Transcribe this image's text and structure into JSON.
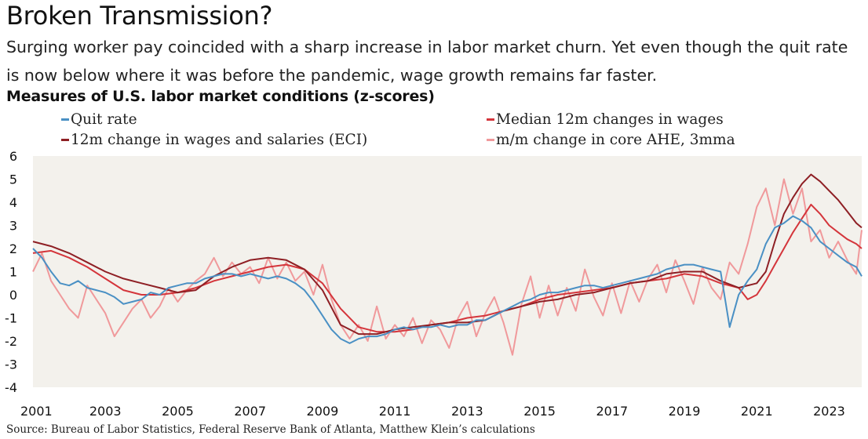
{
  "title": "Broken Transmission?",
  "subtitle": "Surging worker pay coincided with a sharp increase in labor market churn. Yet even though the quit rate is now below where it was before the pandemic, wage growth remains far faster.",
  "source": "Source: Bureau of Labor Statistics, Federal Reserve Bank of Atlanta, Matthew Klein’s calculations",
  "chart_data": {
    "type": "line",
    "title": "Measures of U.S. labor market conditions (z-scores)",
    "xlabel": "",
    "ylabel": "",
    "xlim": [
      2001,
      2023.9
    ],
    "ylim": [
      -4,
      6
    ],
    "x_ticks": [
      "2001",
      "2003",
      "2005",
      "2007",
      "2009",
      "2011",
      "2013",
      "2015",
      "2017",
      "2019",
      "2021",
      "2023"
    ],
    "y_ticks": [
      "6",
      "5",
      "4",
      "3",
      "2",
      "1",
      "0",
      "-1",
      "-2",
      "-3",
      "-4"
    ],
    "grid": false,
    "plot_background": "#f3f1ec",
    "legend_position": "top",
    "series": [
      {
        "name": "Quit rate",
        "color": "#4a90c4",
        "points": [
          [
            2001.0,
            2.0
          ],
          [
            2001.25,
            1.6
          ],
          [
            2001.5,
            1.0
          ],
          [
            2001.75,
            0.5
          ],
          [
            2002.0,
            0.4
          ],
          [
            2002.25,
            0.6
          ],
          [
            2002.5,
            0.3
          ],
          [
            2002.75,
            0.2
          ],
          [
            2003.0,
            0.1
          ],
          [
            2003.25,
            -0.1
          ],
          [
            2003.5,
            -0.4
          ],
          [
            2003.75,
            -0.3
          ],
          [
            2004.0,
            -0.2
          ],
          [
            2004.25,
            0.1
          ],
          [
            2004.5,
            0.0
          ],
          [
            2004.75,
            0.3
          ],
          [
            2005.0,
            0.4
          ],
          [
            2005.25,
            0.5
          ],
          [
            2005.5,
            0.5
          ],
          [
            2005.75,
            0.7
          ],
          [
            2006.0,
            0.8
          ],
          [
            2006.25,
            0.9
          ],
          [
            2006.5,
            0.9
          ],
          [
            2006.75,
            0.8
          ],
          [
            2007.0,
            0.9
          ],
          [
            2007.25,
            0.8
          ],
          [
            2007.5,
            0.7
          ],
          [
            2007.75,
            0.8
          ],
          [
            2008.0,
            0.7
          ],
          [
            2008.25,
            0.5
          ],
          [
            2008.5,
            0.2
          ],
          [
            2008.75,
            -0.3
          ],
          [
            2009.0,
            -0.9
          ],
          [
            2009.25,
            -1.5
          ],
          [
            2009.5,
            -1.9
          ],
          [
            2009.75,
            -2.1
          ],
          [
            2010.0,
            -1.9
          ],
          [
            2010.25,
            -1.8
          ],
          [
            2010.5,
            -1.8
          ],
          [
            2010.75,
            -1.7
          ],
          [
            2011.0,
            -1.5
          ],
          [
            2011.25,
            -1.4
          ],
          [
            2011.5,
            -1.5
          ],
          [
            2011.75,
            -1.4
          ],
          [
            2012.0,
            -1.4
          ],
          [
            2012.25,
            -1.3
          ],
          [
            2012.5,
            -1.4
          ],
          [
            2012.75,
            -1.3
          ],
          [
            2013.0,
            -1.3
          ],
          [
            2013.25,
            -1.1
          ],
          [
            2013.5,
            -1.1
          ],
          [
            2013.75,
            -0.9
          ],
          [
            2014.0,
            -0.7
          ],
          [
            2014.25,
            -0.5
          ],
          [
            2014.5,
            -0.3
          ],
          [
            2014.75,
            -0.2
          ],
          [
            2015.0,
            0.0
          ],
          [
            2015.25,
            0.1
          ],
          [
            2015.5,
            0.1
          ],
          [
            2015.75,
            0.2
          ],
          [
            2016.0,
            0.3
          ],
          [
            2016.25,
            0.4
          ],
          [
            2016.5,
            0.4
          ],
          [
            2016.75,
            0.3
          ],
          [
            2017.0,
            0.4
          ],
          [
            2017.25,
            0.5
          ],
          [
            2017.5,
            0.6
          ],
          [
            2017.75,
            0.7
          ],
          [
            2018.0,
            0.8
          ],
          [
            2018.25,
            0.9
          ],
          [
            2018.5,
            1.1
          ],
          [
            2018.75,
            1.2
          ],
          [
            2019.0,
            1.3
          ],
          [
            2019.25,
            1.3
          ],
          [
            2019.5,
            1.2
          ],
          [
            2019.75,
            1.1
          ],
          [
            2020.0,
            1.0
          ],
          [
            2020.25,
            -1.4
          ],
          [
            2020.5,
            0.0
          ],
          [
            2020.75,
            0.6
          ],
          [
            2021.0,
            1.1
          ],
          [
            2021.25,
            2.2
          ],
          [
            2021.5,
            2.9
          ],
          [
            2021.75,
            3.1
          ],
          [
            2022.0,
            3.4
          ],
          [
            2022.25,
            3.2
          ],
          [
            2022.5,
            2.9
          ],
          [
            2022.75,
            2.3
          ],
          [
            2023.0,
            2.0
          ],
          [
            2023.25,
            1.7
          ],
          [
            2023.5,
            1.4
          ],
          [
            2023.75,
            1.2
          ],
          [
            2023.9,
            0.8
          ]
        ]
      },
      {
        "name": "12m change in wages and salaries (ECI)",
        "color": "#8e1f24",
        "points": [
          [
            2001.0,
            2.3
          ],
          [
            2001.5,
            2.1
          ],
          [
            2002.0,
            1.8
          ],
          [
            2002.5,
            1.4
          ],
          [
            2003.0,
            1.0
          ],
          [
            2003.5,
            0.7
          ],
          [
            2004.0,
            0.5
          ],
          [
            2004.5,
            0.3
          ],
          [
            2005.0,
            0.1
          ],
          [
            2005.5,
            0.2
          ],
          [
            2006.0,
            0.8
          ],
          [
            2006.5,
            1.2
          ],
          [
            2007.0,
            1.5
          ],
          [
            2007.5,
            1.6
          ],
          [
            2008.0,
            1.5
          ],
          [
            2008.5,
            1.1
          ],
          [
            2009.0,
            0.2
          ],
          [
            2009.5,
            -1.3
          ],
          [
            2010.0,
            -1.7
          ],
          [
            2010.5,
            -1.7
          ],
          [
            2011.0,
            -1.5
          ],
          [
            2011.5,
            -1.4
          ],
          [
            2012.0,
            -1.3
          ],
          [
            2012.5,
            -1.2
          ],
          [
            2013.0,
            -1.2
          ],
          [
            2013.5,
            -1.1
          ],
          [
            2014.0,
            -0.7
          ],
          [
            2014.5,
            -0.5
          ],
          [
            2015.0,
            -0.3
          ],
          [
            2015.5,
            -0.2
          ],
          [
            2016.0,
            0.0
          ],
          [
            2016.5,
            0.1
          ],
          [
            2017.0,
            0.3
          ],
          [
            2017.5,
            0.5
          ],
          [
            2018.0,
            0.6
          ],
          [
            2018.5,
            0.9
          ],
          [
            2019.0,
            1.0
          ],
          [
            2019.5,
            1.0
          ],
          [
            2020.0,
            0.6
          ],
          [
            2020.5,
            0.3
          ],
          [
            2021.0,
            0.5
          ],
          [
            2021.25,
            1.0
          ],
          [
            2021.5,
            2.3
          ],
          [
            2021.75,
            3.5
          ],
          [
            2022.0,
            4.2
          ],
          [
            2022.25,
            4.8
          ],
          [
            2022.5,
            5.2
          ],
          [
            2022.75,
            4.9
          ],
          [
            2023.0,
            4.5
          ],
          [
            2023.25,
            4.1
          ],
          [
            2023.5,
            3.6
          ],
          [
            2023.75,
            3.1
          ],
          [
            2023.9,
            2.9
          ]
        ]
      },
      {
        "name": "Median 12m changes in wages",
        "color": "#d4353b",
        "points": [
          [
            2001.0,
            1.8
          ],
          [
            2001.5,
            1.9
          ],
          [
            2002.0,
            1.6
          ],
          [
            2002.5,
            1.2
          ],
          [
            2003.0,
            0.7
          ],
          [
            2003.5,
            0.2
          ],
          [
            2004.0,
            0.0
          ],
          [
            2004.5,
            0.0
          ],
          [
            2005.0,
            0.1
          ],
          [
            2005.5,
            0.3
          ],
          [
            2006.0,
            0.6
          ],
          [
            2006.5,
            0.8
          ],
          [
            2007.0,
            1.0
          ],
          [
            2007.5,
            1.2
          ],
          [
            2008.0,
            1.3
          ],
          [
            2008.5,
            1.1
          ],
          [
            2009.0,
            0.5
          ],
          [
            2009.5,
            -0.6
          ],
          [
            2010.0,
            -1.4
          ],
          [
            2010.5,
            -1.6
          ],
          [
            2011.0,
            -1.6
          ],
          [
            2011.5,
            -1.5
          ],
          [
            2012.0,
            -1.3
          ],
          [
            2012.5,
            -1.2
          ],
          [
            2013.0,
            -1.0
          ],
          [
            2013.5,
            -0.9
          ],
          [
            2014.0,
            -0.7
          ],
          [
            2014.5,
            -0.5
          ],
          [
            2015.0,
            -0.2
          ],
          [
            2015.5,
            0.0
          ],
          [
            2016.0,
            0.1
          ],
          [
            2016.5,
            0.2
          ],
          [
            2017.0,
            0.3
          ],
          [
            2017.5,
            0.5
          ],
          [
            2018.0,
            0.6
          ],
          [
            2018.5,
            0.7
          ],
          [
            2019.0,
            0.9
          ],
          [
            2019.5,
            0.8
          ],
          [
            2020.0,
            0.5
          ],
          [
            2020.5,
            0.3
          ],
          [
            2020.75,
            -0.2
          ],
          [
            2021.0,
            0.0
          ],
          [
            2021.25,
            0.6
          ],
          [
            2021.5,
            1.3
          ],
          [
            2021.75,
            2.0
          ],
          [
            2022.0,
            2.7
          ],
          [
            2022.25,
            3.3
          ],
          [
            2022.5,
            3.9
          ],
          [
            2022.75,
            3.5
          ],
          [
            2023.0,
            3.0
          ],
          [
            2023.25,
            2.7
          ],
          [
            2023.5,
            2.4
          ],
          [
            2023.75,
            2.2
          ],
          [
            2023.9,
            2.0
          ]
        ]
      },
      {
        "name": "m/m change in core AHE, 3mma",
        "color": "#f0999b",
        "points": [
          [
            2001.0,
            1.0
          ],
          [
            2001.25,
            1.8
          ],
          [
            2001.5,
            0.6
          ],
          [
            2001.75,
            0.0
          ],
          [
            2002.0,
            -0.6
          ],
          [
            2002.25,
            -1.0
          ],
          [
            2002.5,
            0.4
          ],
          [
            2002.75,
            -0.2
          ],
          [
            2003.0,
            -0.8
          ],
          [
            2003.25,
            -1.8
          ],
          [
            2003.5,
            -1.2
          ],
          [
            2003.75,
            -0.6
          ],
          [
            2004.0,
            -0.2
          ],
          [
            2004.25,
            -1.0
          ],
          [
            2004.5,
            -0.5
          ],
          [
            2004.75,
            0.3
          ],
          [
            2005.0,
            -0.3
          ],
          [
            2005.25,
            0.2
          ],
          [
            2005.5,
            0.6
          ],
          [
            2005.75,
            0.9
          ],
          [
            2006.0,
            1.6
          ],
          [
            2006.25,
            0.8
          ],
          [
            2006.5,
            1.4
          ],
          [
            2006.75,
            0.9
          ],
          [
            2007.0,
            1.2
          ],
          [
            2007.25,
            0.5
          ],
          [
            2007.5,
            1.6
          ],
          [
            2007.75,
            0.7
          ],
          [
            2008.0,
            1.4
          ],
          [
            2008.25,
            0.6
          ],
          [
            2008.5,
            1.0
          ],
          [
            2008.75,
            0.0
          ],
          [
            2009.0,
            1.3
          ],
          [
            2009.25,
            -0.2
          ],
          [
            2009.5,
            -1.3
          ],
          [
            2009.75,
            -1.9
          ],
          [
            2010.0,
            -1.3
          ],
          [
            2010.25,
            -2.0
          ],
          [
            2010.5,
            -0.5
          ],
          [
            2010.75,
            -1.9
          ],
          [
            2011.0,
            -1.3
          ],
          [
            2011.25,
            -1.8
          ],
          [
            2011.5,
            -1.0
          ],
          [
            2011.75,
            -2.1
          ],
          [
            2012.0,
            -1.1
          ],
          [
            2012.25,
            -1.5
          ],
          [
            2012.5,
            -2.3
          ],
          [
            2012.75,
            -1.0
          ],
          [
            2013.0,
            -0.3
          ],
          [
            2013.25,
            -1.8
          ],
          [
            2013.5,
            -0.8
          ],
          [
            2013.75,
            -0.1
          ],
          [
            2014.0,
            -1.2
          ],
          [
            2014.25,
            -2.6
          ],
          [
            2014.5,
            -0.4
          ],
          [
            2014.75,
            0.8
          ],
          [
            2015.0,
            -1.0
          ],
          [
            2015.25,
            0.4
          ],
          [
            2015.5,
            -0.9
          ],
          [
            2015.75,
            0.3
          ],
          [
            2016.0,
            -0.7
          ],
          [
            2016.25,
            1.1
          ],
          [
            2016.5,
            -0.1
          ],
          [
            2016.75,
            -0.9
          ],
          [
            2017.0,
            0.5
          ],
          [
            2017.25,
            -0.8
          ],
          [
            2017.5,
            0.6
          ],
          [
            2017.75,
            -0.3
          ],
          [
            2018.0,
            0.7
          ],
          [
            2018.25,
            1.3
          ],
          [
            2018.5,
            0.1
          ],
          [
            2018.75,
            1.5
          ],
          [
            2019.0,
            0.6
          ],
          [
            2019.25,
            -0.4
          ],
          [
            2019.5,
            1.2
          ],
          [
            2019.75,
            0.3
          ],
          [
            2020.0,
            -0.2
          ],
          [
            2020.25,
            1.4
          ],
          [
            2020.5,
            0.9
          ],
          [
            2020.75,
            2.2
          ],
          [
            2021.0,
            3.8
          ],
          [
            2021.25,
            4.6
          ],
          [
            2021.5,
            3.0
          ],
          [
            2021.75,
            5.0
          ],
          [
            2022.0,
            3.5
          ],
          [
            2022.25,
            4.6
          ],
          [
            2022.5,
            2.3
          ],
          [
            2022.75,
            2.8
          ],
          [
            2023.0,
            1.6
          ],
          [
            2023.25,
            2.3
          ],
          [
            2023.5,
            1.5
          ],
          [
            2023.75,
            0.9
          ],
          [
            2023.9,
            2.8
          ]
        ]
      }
    ]
  }
}
